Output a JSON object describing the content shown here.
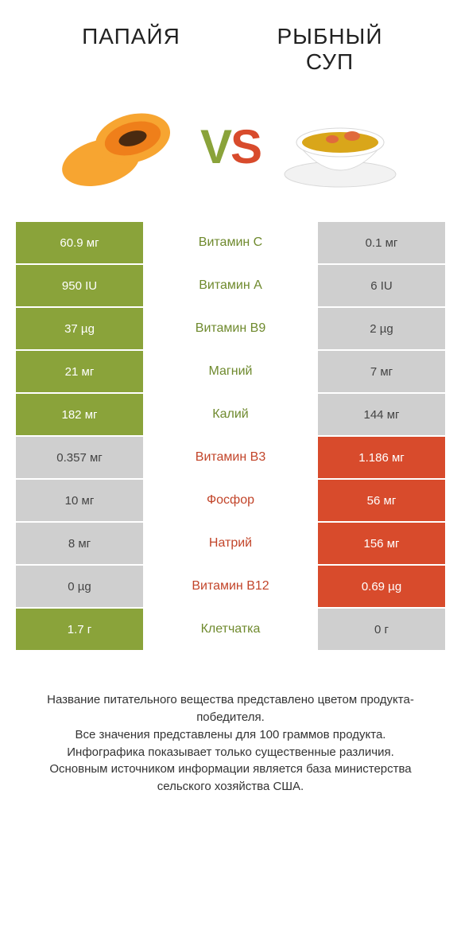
{
  "colors": {
    "green": "#8aa33a",
    "green_text": "#6f8a2e",
    "red": "#d84b2c",
    "red_text": "#c2452a",
    "grey": "#cfcfcf"
  },
  "header": {
    "left": "ПАПАЙЯ",
    "right_line1": "РЫБНЫЙ",
    "right_line2": "СУП"
  },
  "vs": {
    "v": "V",
    "s": "S"
  },
  "rows": [
    {
      "left": "60.9 мг",
      "mid": "Витамин C",
      "right": "0.1 мг",
      "winner": "left"
    },
    {
      "left": "950 IU",
      "mid": "Витамин A",
      "right": "6 IU",
      "winner": "left"
    },
    {
      "left": "37 µg",
      "mid": "Витамин B9",
      "right": "2 µg",
      "winner": "left"
    },
    {
      "left": "21 мг",
      "mid": "Магний",
      "right": "7 мг",
      "winner": "left"
    },
    {
      "left": "182 мг",
      "mid": "Калий",
      "right": "144 мг",
      "winner": "left"
    },
    {
      "left": "0.357 мг",
      "mid": "Витамин B3",
      "right": "1.186 мг",
      "winner": "right"
    },
    {
      "left": "10 мг",
      "mid": "Фосфор",
      "right": "56 мг",
      "winner": "right"
    },
    {
      "left": "8 мг",
      "mid": "Натрий",
      "right": "156 мг",
      "winner": "right"
    },
    {
      "left": "0 µg",
      "mid": "Витамин B12",
      "right": "0.69 µg",
      "winner": "right"
    },
    {
      "left": "1.7 г",
      "mid": "Клетчатка",
      "right": "0 г",
      "winner": "left"
    }
  ],
  "footnote": {
    "l1": "Название питательного вещества представлено цветом продукта-победителя.",
    "l2": "Все значения представлены для 100 граммов продукта.",
    "l3": "Инфографика показывает только существенные различия.",
    "l4": "Основным источником информации является база министерства сельского хозяйства США."
  }
}
